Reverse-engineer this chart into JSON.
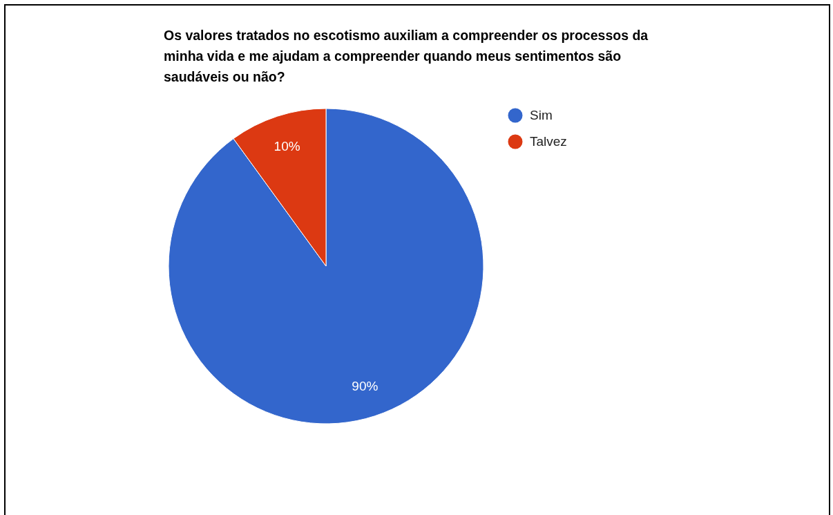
{
  "chart_data": {
    "type": "pie",
    "title": "Os valores tratados no escotismo auxiliam a compreender os processos da minha vida e me ajudam a compreender quando meus sentimentos são saudáveis ou não?",
    "categories": [
      "Sim",
      "Talvez"
    ],
    "values": [
      90,
      10
    ],
    "colors": [
      "#3366cc",
      "#dc3912"
    ],
    "value_labels": [
      "90%",
      "10%"
    ],
    "legend": "top right"
  }
}
